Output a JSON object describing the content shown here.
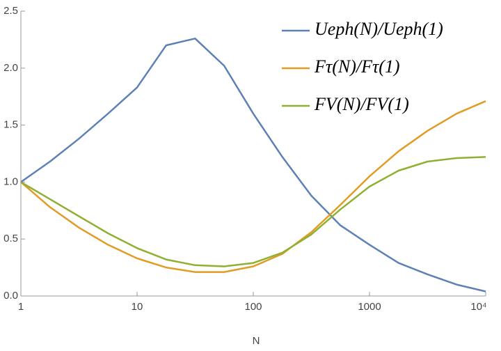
{
  "chart_data": {
    "type": "line",
    "xlabel": "N",
    "xscale": "log",
    "x": [
      1,
      1.78,
      3.16,
      5.62,
      10,
      17.8,
      31.6,
      56.2,
      100,
      178,
      316,
      562,
      1000,
      1780,
      3160,
      5620,
      10000
    ],
    "series": [
      {
        "name": "Ueph(N)/Ueph(1)",
        "color": "#5e81b5",
        "values": [
          1.0,
          1.18,
          1.38,
          1.6,
          1.83,
          2.2,
          2.26,
          2.02,
          1.6,
          1.22,
          0.88,
          0.62,
          0.45,
          0.29,
          0.19,
          0.1,
          0.04
        ]
      },
      {
        "name": "Fτ(N)/Fτ(1)",
        "color": "#e19c24",
        "values": [
          1.0,
          0.78,
          0.6,
          0.45,
          0.33,
          0.25,
          0.21,
          0.21,
          0.26,
          0.37,
          0.56,
          0.8,
          1.05,
          1.27,
          1.45,
          1.6,
          1.71
        ]
      },
      {
        "name": "FV(N)/FV(1)",
        "color": "#8fb032",
        "values": [
          1.0,
          0.85,
          0.7,
          0.55,
          0.42,
          0.32,
          0.27,
          0.26,
          0.29,
          0.38,
          0.54,
          0.76,
          0.96,
          1.1,
          1.18,
          1.21,
          1.22
        ]
      }
    ],
    "xlim": [
      1,
      10000
    ],
    "xticks": [
      1,
      10,
      100,
      1000,
      {
        "value": 10000,
        "label": "10⁴"
      }
    ],
    "ylim": [
      0,
      2.5
    ],
    "yticks": [
      {
        "value": 0,
        "label": "0.0"
      },
      0.5,
      {
        "value": 1,
        "label": "1.0"
      },
      1.5,
      {
        "value": 2,
        "label": "2.0"
      },
      2.5
    ],
    "legend": "top-right"
  }
}
